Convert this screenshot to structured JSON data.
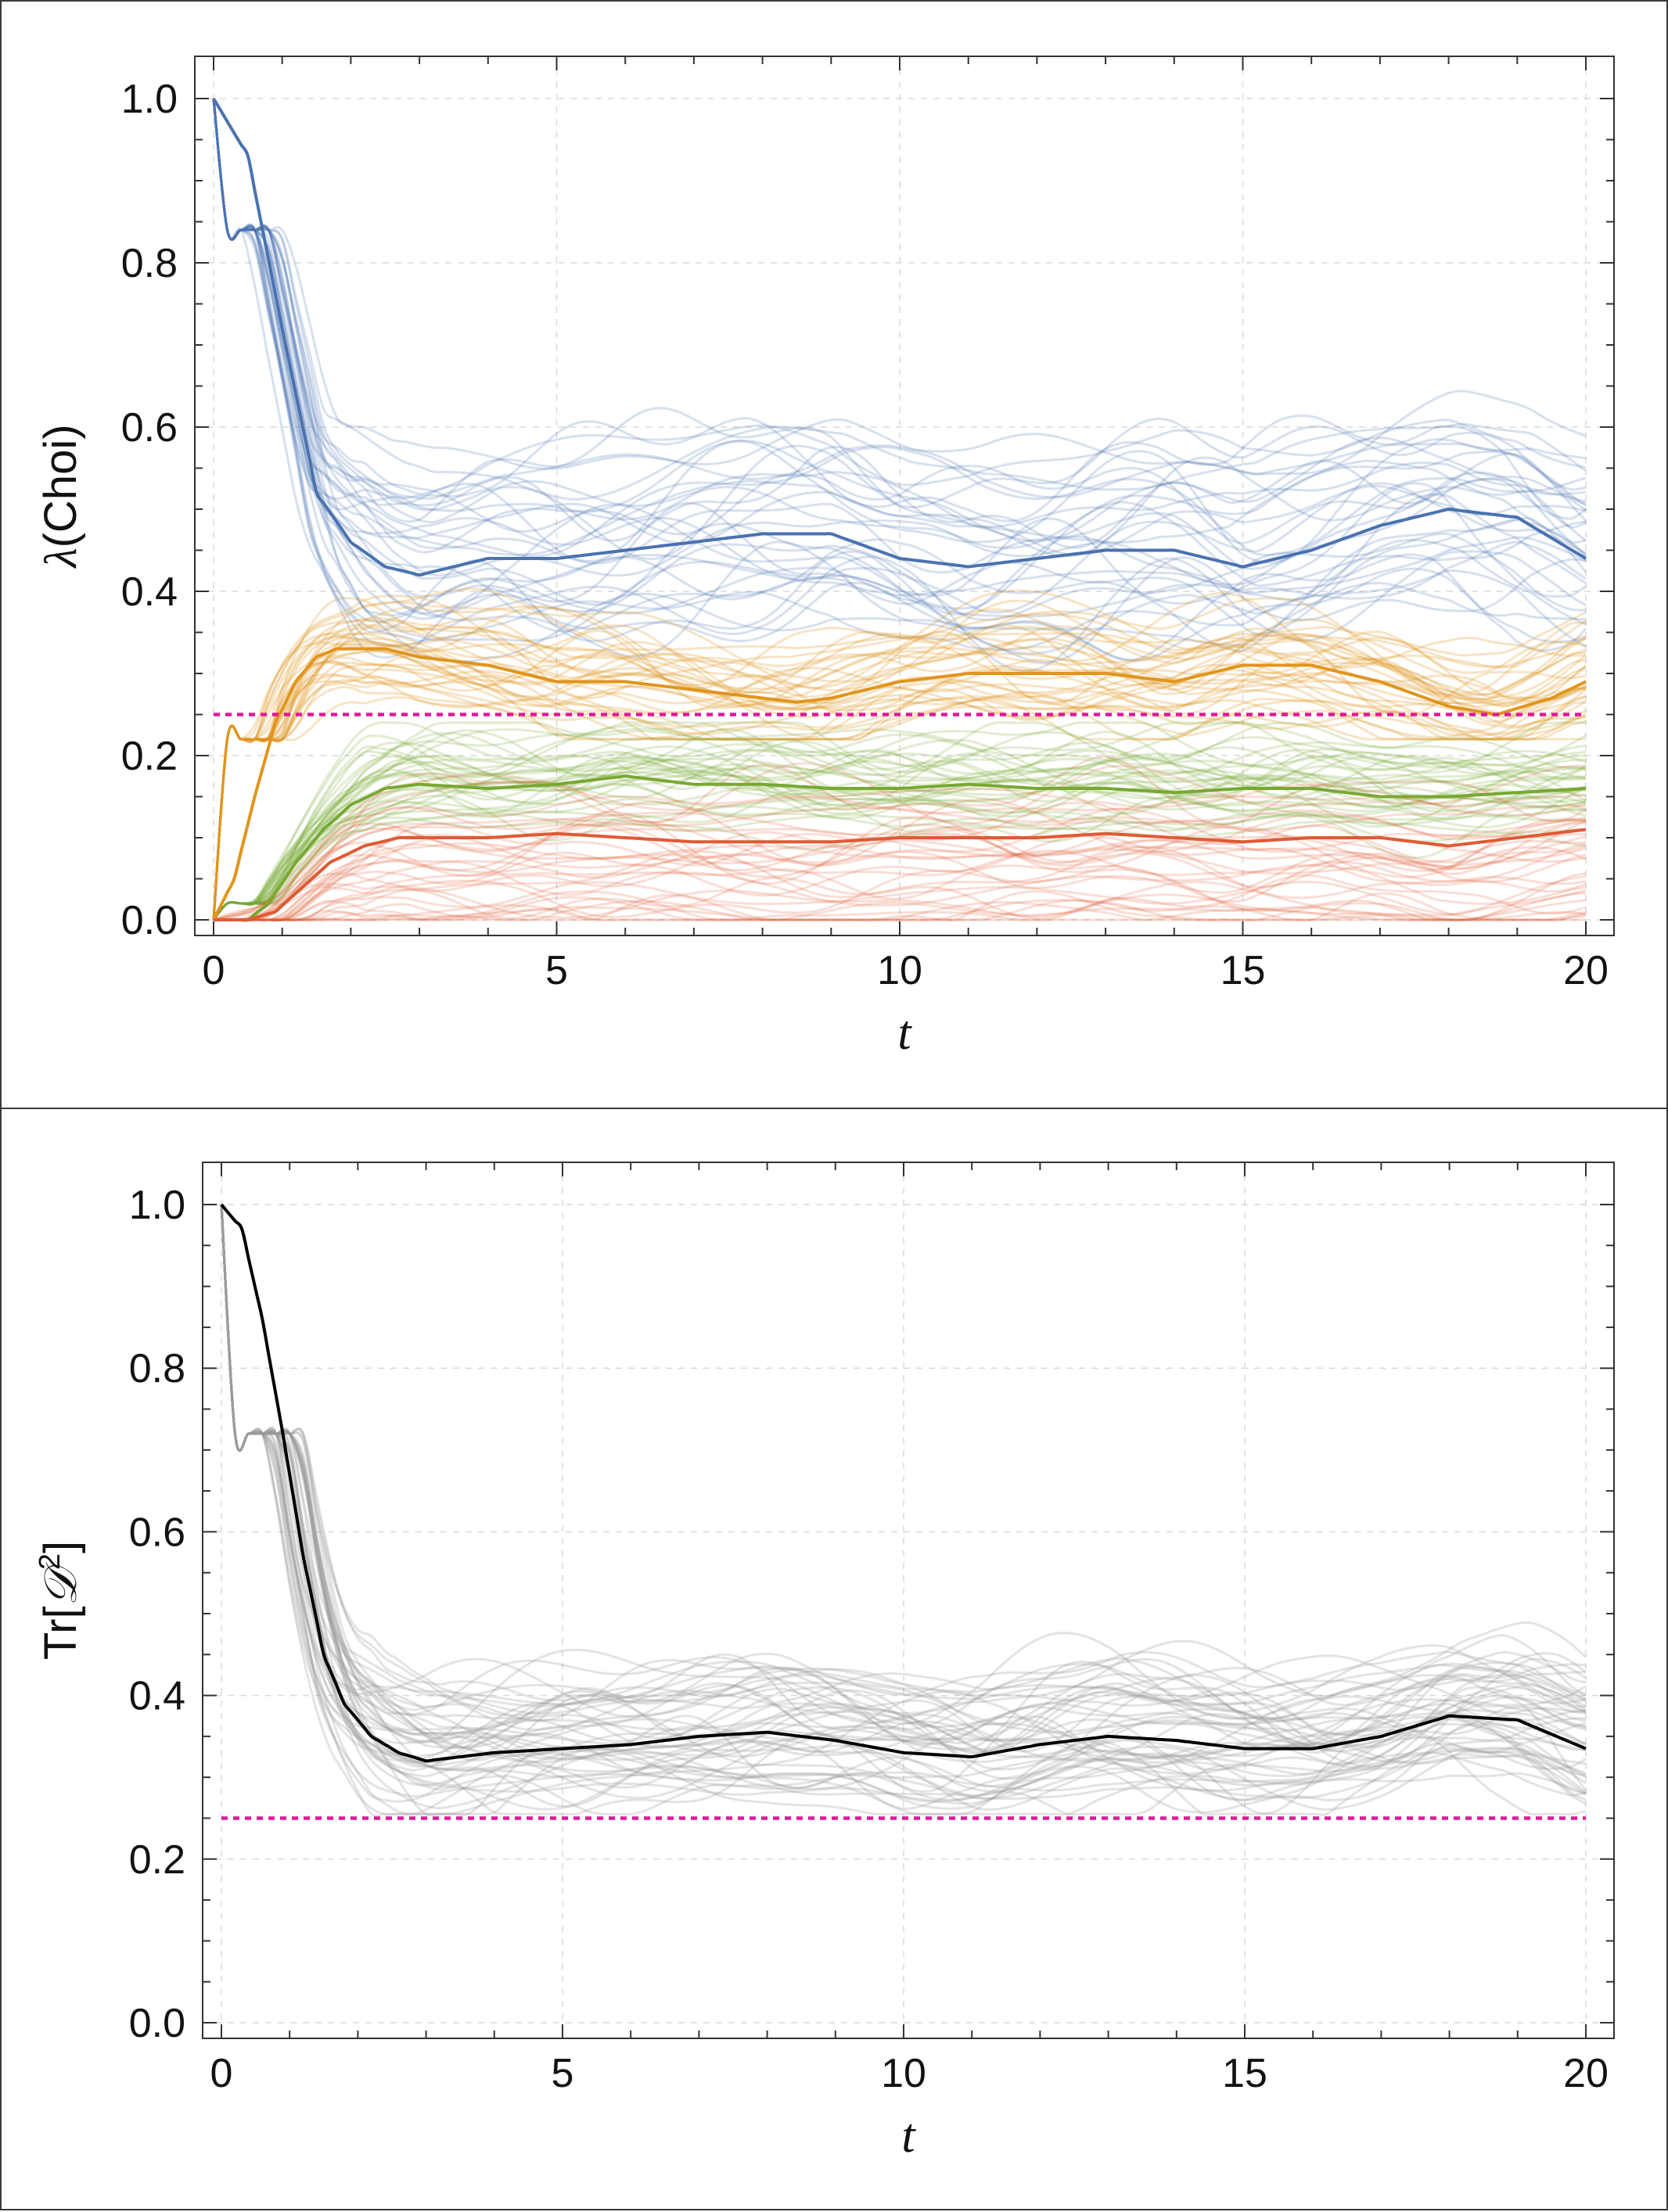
{
  "chart_data": [
    {
      "type": "line",
      "title": "",
      "xlabel": "t",
      "ylabel_parts": [
        "λ",
        "(Choi)"
      ],
      "xlim": [
        0,
        20
      ],
      "ylim": [
        0,
        1.0
      ],
      "xticks": [
        "0",
        "5",
        "10",
        "15",
        "20"
      ],
      "yticks": [
        "0.0",
        "0.2",
        "0.4",
        "0.6",
        "0.8",
        "1.0"
      ],
      "grid": true,
      "reference_line": {
        "y": 0.25,
        "color": "#e0189a",
        "style": "dashed"
      },
      "colors": {
        "blue": "#4a72b0",
        "orange": "#e0951c",
        "green": "#78a832",
        "red": "#e05a34"
      },
      "series": [
        {
          "color_key": "blue",
          "x": [
            0,
            0.5,
            1.0,
            1.5,
            2.0,
            2.5,
            3.0,
            3.5,
            4,
            5,
            6,
            7,
            8,
            9,
            10,
            11,
            12,
            13,
            14,
            15,
            16,
            17,
            18,
            19,
            20
          ],
          "values": [
            1.0,
            0.93,
            0.72,
            0.52,
            0.46,
            0.43,
            0.42,
            0.43,
            0.44,
            0.44,
            0.45,
            0.46,
            0.47,
            0.47,
            0.44,
            0.43,
            0.44,
            0.45,
            0.45,
            0.43,
            0.45,
            0.48,
            0.5,
            0.49,
            0.44
          ]
        },
        {
          "color_key": "orange",
          "x": [
            0,
            0.3,
            0.6,
            0.9,
            1.2,
            1.5,
            1.8,
            2.5,
            3,
            4,
            5,
            6,
            7,
            8,
            8.5,
            9,
            10,
            11,
            12,
            13,
            14,
            15,
            16,
            17,
            18,
            18.7,
            19.5,
            20
          ],
          "values": [
            0.0,
            0.05,
            0.15,
            0.24,
            0.29,
            0.32,
            0.33,
            0.33,
            0.32,
            0.31,
            0.29,
            0.29,
            0.28,
            0.27,
            0.265,
            0.27,
            0.29,
            0.3,
            0.3,
            0.3,
            0.29,
            0.31,
            0.31,
            0.29,
            0.26,
            0.25,
            0.27,
            0.29
          ]
        },
        {
          "color_key": "green",
          "x": [
            0,
            0.5,
            0.8,
            1.2,
            1.6,
            2,
            2.5,
            3,
            4,
            5,
            6,
            7,
            8,
            9,
            10,
            11,
            12,
            13,
            14,
            15,
            16,
            17,
            18,
            19,
            20
          ],
          "values": [
            0.0,
            0.0,
            0.02,
            0.07,
            0.11,
            0.14,
            0.16,
            0.165,
            0.16,
            0.165,
            0.175,
            0.165,
            0.165,
            0.16,
            0.16,
            0.165,
            0.16,
            0.16,
            0.155,
            0.16,
            0.16,
            0.15,
            0.15,
            0.155,
            0.16
          ]
        },
        {
          "color_key": "red",
          "x": [
            0,
            0.5,
            0.9,
            1.3,
            1.7,
            2.2,
            2.7,
            3.5,
            4,
            5,
            6,
            7,
            8,
            9,
            10,
            11,
            12,
            13,
            14,
            15,
            16,
            17,
            18,
            19,
            20
          ],
          "values": [
            0.0,
            0.0,
            0.01,
            0.04,
            0.07,
            0.09,
            0.1,
            0.1,
            0.1,
            0.105,
            0.1,
            0.095,
            0.095,
            0.095,
            0.1,
            0.1,
            0.1,
            0.105,
            0.1,
            0.095,
            0.1,
            0.1,
            0.09,
            0.1,
            0.11
          ]
        }
      ]
    },
    {
      "type": "line",
      "title": "",
      "xlabel": "t",
      "ylabel_parts": [
        "Tr[",
        "𝒟",
        "2",
        "]"
      ],
      "xlim": [
        0,
        20
      ],
      "ylim": [
        0,
        1.0
      ],
      "xticks": [
        "0",
        "5",
        "10",
        "15",
        "20"
      ],
      "yticks": [
        "0.0",
        "0.2",
        "0.4",
        "0.6",
        "0.8",
        "1.0"
      ],
      "grid": true,
      "reference_line": {
        "y": 0.25,
        "color": "#e0189a",
        "style": "dashed"
      },
      "colors": {
        "black": "#000000",
        "gray": "#9a9a9a"
      },
      "series": [
        {
          "color_key": "black",
          "x": [
            0,
            0.3,
            0.6,
            0.9,
            1.2,
            1.5,
            1.8,
            2.2,
            2.6,
            3.0,
            3.5,
            4,
            5,
            6,
            7,
            8,
            9,
            10,
            11,
            12,
            13,
            14,
            15,
            16,
            17,
            18,
            19,
            20
          ],
          "values": [
            1.0,
            0.97,
            0.86,
            0.72,
            0.57,
            0.45,
            0.39,
            0.35,
            0.33,
            0.32,
            0.325,
            0.33,
            0.335,
            0.34,
            0.35,
            0.355,
            0.345,
            0.33,
            0.325,
            0.34,
            0.35,
            0.345,
            0.335,
            0.335,
            0.35,
            0.375,
            0.37,
            0.335
          ]
        }
      ]
    }
  ]
}
